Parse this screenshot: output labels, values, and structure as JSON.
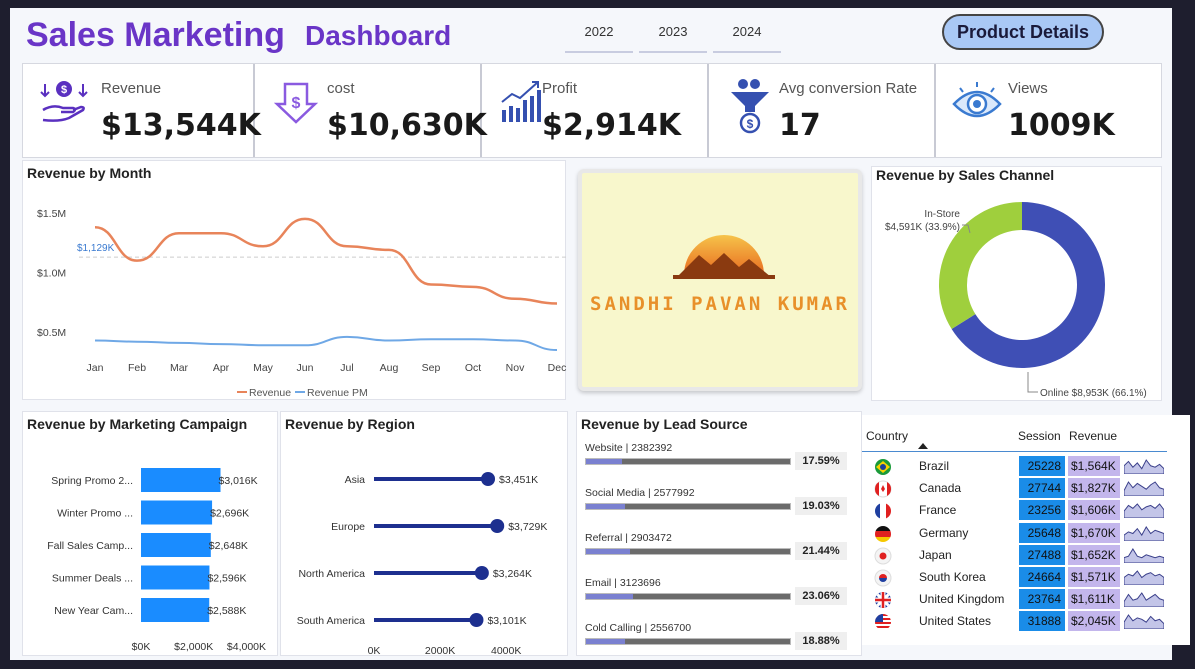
{
  "header": {
    "title": "Sales Marketing",
    "subtitle": "Dashboard",
    "years": [
      "2022",
      "2023",
      "2024"
    ],
    "product_button": "Product Details"
  },
  "kpis": [
    {
      "label": "Revenue",
      "value": "$13,544K",
      "icon": "money-hand-icon"
    },
    {
      "label": "cost",
      "value": "$10,630K",
      "icon": "dollar-tag-icon"
    },
    {
      "label": "Profit",
      "value": "$2,914K",
      "icon": "growth-chart-icon"
    },
    {
      "label": "Avg conversion Rate",
      "value": "17",
      "icon": "funnel-dollar-icon"
    },
    {
      "label": "Views",
      "value": "1009K",
      "icon": "eye-icon"
    }
  ],
  "logo": {
    "text": "SANDHI PAVAN KUMAR"
  },
  "colors": {
    "accent": "#6a35c7",
    "revenue": "#e8845a",
    "revenue_pm": "#6fa8e6",
    "bar": "#1a8cff",
    "region": "#1d2f8f",
    "donut_online": "#3f4fb5",
    "donut_store": "#9fcf3d"
  },
  "chart_data": [
    {
      "type": "line",
      "title": "Revenue by Month",
      "categories": [
        "Jan",
        "Feb",
        "Mar",
        "Apr",
        "May",
        "Jun",
        "Jul",
        "Aug",
        "Sep",
        "Oct",
        "Nov",
        "Dec"
      ],
      "series": [
        {
          "name": "Revenue",
          "values": [
            1.38,
            1.1,
            1.33,
            1.33,
            1.22,
            1.45,
            1.22,
            1.19,
            0.9,
            0.88,
            0.78,
            0.74
          ]
        },
        {
          "name": "Revenue PM",
          "values": [
            0.43,
            0.42,
            0.41,
            0.4,
            0.39,
            0.39,
            0.46,
            0.43,
            0.44,
            0.44,
            0.43,
            0.35
          ]
        }
      ],
      "ytick_labels": [
        "$0.5M",
        "$1.0M",
        "$1.5M"
      ],
      "yticks": [
        0.5,
        1.0,
        1.5
      ],
      "reference": {
        "value": 1.129,
        "label": "$1,129K"
      },
      "ylim": [
        0.3,
        1.6
      ],
      "legend": "bottom"
    },
    {
      "type": "pie",
      "title": "Revenue by Sales Channel",
      "slices": [
        {
          "name": "Online",
          "value": 8953,
          "label": "Online $8,953K (66.1%)"
        },
        {
          "name": "In-Store",
          "value": 4591,
          "label": "$4,591K (33.9%)",
          "name_label": "In-Store"
        }
      ]
    },
    {
      "type": "bar",
      "title": "Revenue by Marketing Campaign",
      "categories": [
        "Spring Promo 2...",
        "Winter Promo ...",
        "Fall Sales Camp...",
        "Summer Deals ...",
        "New Year Cam..."
      ],
      "values": [
        3016,
        2696,
        2648,
        2596,
        2588
      ],
      "value_labels": [
        "$3,016K",
        "$2,696K",
        "$2,648K",
        "$2,596K",
        "$2,588K"
      ],
      "xtick_labels": [
        "$0K",
        "$2,000K",
        "$4,000K"
      ],
      "xticks": [
        0,
        2000,
        4000
      ],
      "xlim": [
        0,
        4400
      ]
    },
    {
      "type": "scatter",
      "title": "Revenue by Region",
      "categories": [
        "Asia",
        "Europe",
        "North America",
        "South America"
      ],
      "values": [
        3451,
        3729,
        3264,
        3101
      ],
      "value_labels": [
        "$3,451K",
        "$3,729K",
        "$3,264K",
        "$3,101K"
      ],
      "xtick_labels": [
        "0K",
        "2000K",
        "4000K"
      ],
      "xticks": [
        0,
        2000,
        4000
      ],
      "xlim": [
        0,
        4600
      ]
    },
    {
      "type": "bar",
      "title": "Revenue by Lead Source",
      "items": [
        {
          "label": "Website | 2382392",
          "value": 17.59,
          "pct": "17.59%"
        },
        {
          "label": "Social Media | 2577992",
          "value": 19.03,
          "pct": "19.03%"
        },
        {
          "label": "Referral | 2903472",
          "value": 21.44,
          "pct": "21.44%"
        },
        {
          "label": "Email | 3123696",
          "value": 23.06,
          "pct": "23.06%"
        },
        {
          "label": "Cold Calling | 2556700",
          "value": 18.88,
          "pct": "18.88%"
        }
      ]
    },
    {
      "type": "table",
      "headers": [
        "Country",
        "Session",
        "Revenue"
      ],
      "rows": [
        {
          "country": "Brazil",
          "flag": "brazil-flag-icon",
          "session": "25228",
          "revenue": "$1,564K",
          "trend": [
            5,
            8,
            4,
            7,
            3,
            9,
            5,
            4,
            6,
            3
          ]
        },
        {
          "country": "Canada",
          "flag": "canada-flag-icon",
          "session": "27744",
          "revenue": "$1,827K",
          "trend": [
            3,
            9,
            5,
            8,
            6,
            4,
            7,
            9,
            5,
            4
          ]
        },
        {
          "country": "France",
          "flag": "france-flag-icon",
          "session": "23256",
          "revenue": "$1,606K",
          "trend": [
            4,
            8,
            6,
            9,
            5,
            7,
            8,
            6,
            9,
            5
          ]
        },
        {
          "country": "Germany",
          "flag": "germany-flag-icon",
          "session": "25648",
          "revenue": "$1,670K",
          "trend": [
            3,
            5,
            4,
            7,
            3,
            8,
            4,
            6,
            5,
            4
          ]
        },
        {
          "country": "Japan",
          "flag": "japan-flag-icon",
          "session": "27488",
          "revenue": "$1,652K",
          "trend": [
            3,
            4,
            9,
            4,
            3,
            5,
            4,
            3,
            4,
            3
          ]
        },
        {
          "country": "South Korea",
          "flag": "south-korea-flag-icon",
          "session": "24664",
          "revenue": "$1,571K",
          "trend": [
            4,
            6,
            5,
            8,
            4,
            6,
            7,
            5,
            6,
            4
          ]
        },
        {
          "country": "United Kingdom",
          "flag": "uk-flag-icon",
          "session": "23764",
          "revenue": "$1,611K",
          "trend": [
            3,
            8,
            4,
            5,
            9,
            4,
            6,
            8,
            5,
            4
          ]
        },
        {
          "country": "United States",
          "flag": "us-flag-icon",
          "session": "31888",
          "revenue": "$2,045K",
          "trend": [
            4,
            9,
            5,
            7,
            6,
            4,
            8,
            5,
            6,
            3
          ]
        }
      ]
    }
  ]
}
